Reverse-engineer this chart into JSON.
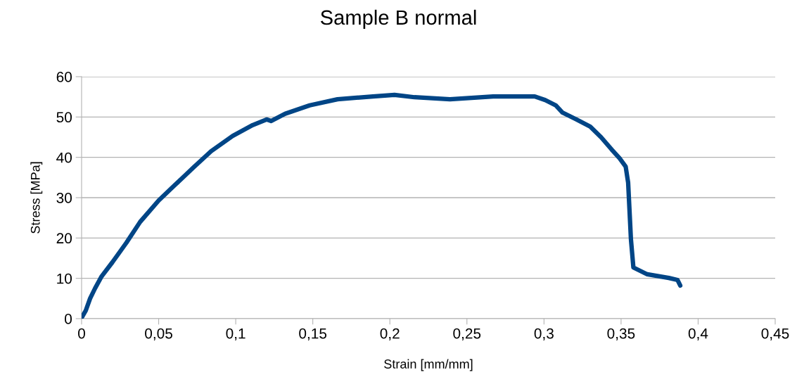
{
  "chart_data": {
    "type": "line",
    "title": "Sample B normal",
    "xlabel": "Strain [mm/mm]",
    "ylabel": "Stress [MPa]",
    "series": [
      {
        "color": "#004586",
        "x": [
          0,
          0.0027,
          0.0055,
          0.0087,
          0.013,
          0.02,
          0.029,
          0.038,
          0.05,
          0.061,
          0.0726,
          0.084,
          0.098,
          0.111,
          0.12,
          0.123,
          0.132,
          0.148,
          0.166,
          0.189,
          0.203,
          0.216,
          0.239,
          0.267,
          0.294,
          0.3008,
          0.3076,
          0.312,
          0.321,
          0.33,
          0.337,
          0.344,
          0.349,
          0.353,
          0.3546,
          0.3555,
          0.3564,
          0.358,
          0.367,
          0.381,
          0.3866,
          0.3884
        ],
        "values": [
          0.2,
          2,
          5,
          7.5,
          10.5,
          14,
          18.8,
          24,
          29.3,
          33.3,
          37.5,
          41.5,
          45.3,
          48,
          49.4,
          49,
          50.8,
          52.9,
          54.4,
          55.1,
          55.5,
          54.9,
          54.4,
          55.1,
          55.1,
          54.2,
          52.9,
          51.1,
          49.4,
          47.6,
          45,
          41.9,
          39.8,
          37.7,
          33.7,
          26.7,
          19.7,
          12.7,
          11,
          10.1,
          9.6,
          8.2
        ]
      }
    ],
    "xlim": [
      0,
      0.45
    ],
    "xticks": [
      0,
      {
        "value": 0.05,
        "label": "0,05"
      },
      {
        "value": 0.1,
        "label": "0,1"
      },
      {
        "value": 0.15,
        "label": "0,15"
      },
      {
        "value": 0.2,
        "label": "0,2"
      },
      {
        "value": 0.25,
        "label": "0,25"
      },
      {
        "value": 0.3,
        "label": "0,3"
      },
      {
        "value": 0.35,
        "label": "0,35"
      },
      {
        "value": 0.4,
        "label": "0,4"
      },
      {
        "value": 0.45,
        "label": "0,45"
      }
    ],
    "ylim": [
      0,
      60
    ],
    "yticks": [
      0,
      10,
      20,
      30,
      40,
      50,
      60
    ],
    "grid": "y",
    "line_style": "solid"
  }
}
